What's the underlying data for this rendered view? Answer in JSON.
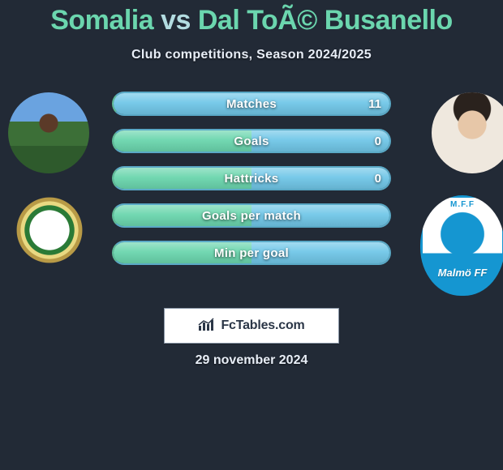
{
  "title": {
    "left_name": "Somalia",
    "vs": "vs",
    "right_name": "Dal ToÃ© Busanello",
    "left_color": "#6bd6ae",
    "right_color": "#6bd6ae",
    "vs_color": "#b3dce1"
  },
  "subtitle": "Club competitions, Season 2024/2025",
  "colors": {
    "left_accent": "#6bd6ae",
    "right_accent": "#71c7e8",
    "bar_border_left": "#5fbb97",
    "bar_border_right": "#5aa9c6",
    "background": "#222a36"
  },
  "bars": [
    {
      "label": "Matches",
      "left": "",
      "right": "11",
      "left_pct": 0,
      "right_pct": 100
    },
    {
      "label": "Goals",
      "left": "",
      "right": "0",
      "left_pct": 50,
      "right_pct": 50
    },
    {
      "label": "Hattricks",
      "left": "",
      "right": "0",
      "left_pct": 50,
      "right_pct": 50
    },
    {
      "label": "Goals per match",
      "left": "",
      "right": "",
      "left_pct": 50,
      "right_pct": 50
    },
    {
      "label": "Min per goal",
      "left": "",
      "right": "",
      "left_pct": 50,
      "right_pct": 50
    }
  ],
  "club_right_label": "Malmö FF",
  "club_right_top": "M.F.F",
  "brand": "FcTables.com",
  "date": "29 november 2024"
}
